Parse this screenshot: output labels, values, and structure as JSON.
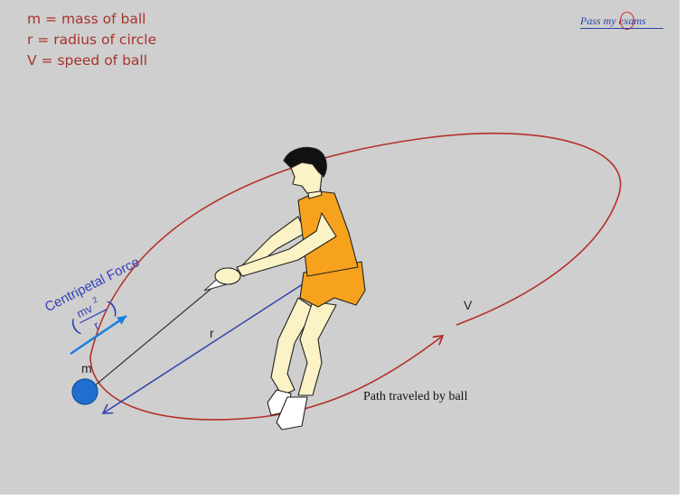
{
  "legend": {
    "mass": "m = mass of ball",
    "radius": "r = radius of circle",
    "speed": "V = speed of ball"
  },
  "logo": {
    "text": "Pass my exams"
  },
  "force": {
    "title": "Centripetal Force",
    "numerator": "mv",
    "exponent": "2",
    "denominator": "r",
    "open_paren": "(",
    "close_paren": ")"
  },
  "labels": {
    "ball": "m",
    "radius": "r",
    "velocity": "V",
    "path": "Path traveled by ball"
  },
  "colors": {
    "background": "#cfcfcf",
    "orbit": "#b4302b",
    "radius_line": "#3344aa",
    "ball": "#1f6fd0",
    "force_arrow": "#1a7fe0",
    "force_text": "#3340b8",
    "legend_text": "#a8332b",
    "shirt": "#f7a21c",
    "skin": "#fbf2c6",
    "hair": "#111111"
  }
}
